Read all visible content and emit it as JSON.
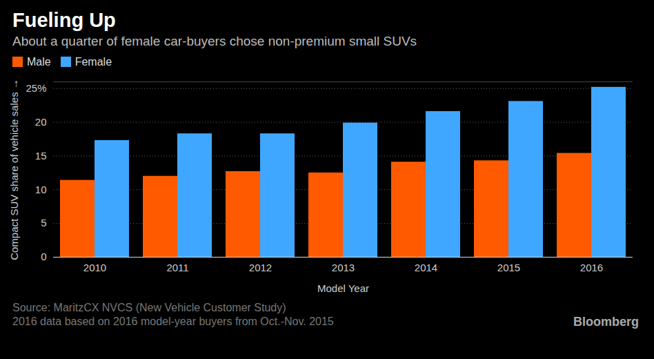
{
  "chart_data": {
    "type": "bar",
    "title": "Fueling Up",
    "subtitle": "About a quarter of female car-buyers chose non-premium small SUVs",
    "x_label": "Model Year",
    "y_label": "Compact SUV share of vehicle sales",
    "categories": [
      "2010",
      "2011",
      "2012",
      "2013",
      "2014",
      "2015",
      "2016"
    ],
    "series": [
      {
        "name": "Male",
        "color": "#ff5a00",
        "values": [
          11.4,
          12.0,
          12.7,
          12.5,
          14.1,
          14.3,
          15.4
        ]
      },
      {
        "name": "Female",
        "color": "#3fa7ff",
        "values": [
          17.3,
          18.3,
          18.3,
          19.9,
          21.6,
          23.1,
          25.2
        ]
      }
    ],
    "ylim": [
      0,
      26
    ],
    "yticks": [
      0,
      5,
      10,
      15,
      20,
      {
        "value": 25,
        "label": "25%"
      }
    ],
    "grid": true,
    "legend": "top-left",
    "source": "Source: MaritzCX NVCS (New Vehicle Customer Study)",
    "note": "2016 data based on 2016 model-year buyers from Oct.-Nov. 2015",
    "credit": "Bloomberg"
  }
}
